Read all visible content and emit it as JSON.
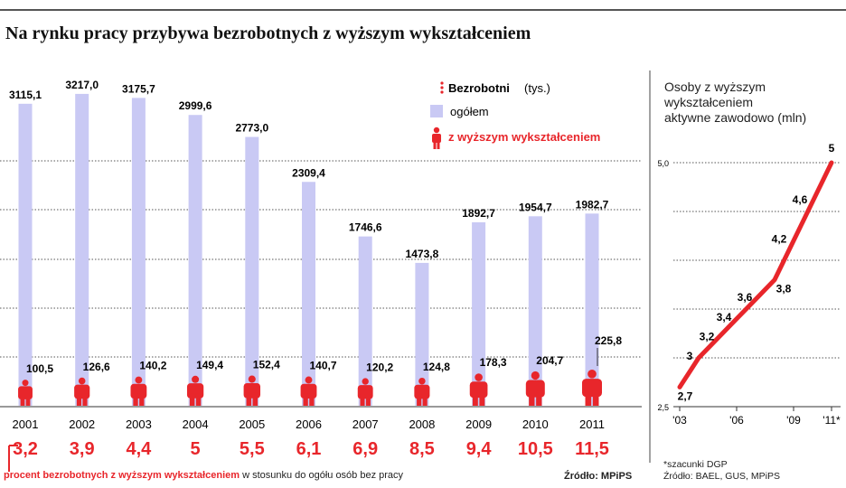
{
  "title": "Na rynku pracy przybywa bezrobotnych z wyższym wykształceniem",
  "legend": {
    "header_bold": "Bezrobotni",
    "header_unit": "(tys.)",
    "total_label": "ogółem",
    "higher_label": "z wyższym wykształceniem"
  },
  "colors": {
    "total_bar": "#c9c9f4",
    "red": "#e8262b",
    "grid": "#555555"
  },
  "footer": {
    "red_text": "procent bezrobotnych z wyższym wykształceniem",
    "black_text": "w stosunku do ogółu osób bez pracy",
    "source": "Źródło: MPiPS"
  },
  "right": {
    "title_lines": [
      "Osoby z wyższym",
      "wykształceniem",
      "aktywne zawodowo (mln)"
    ],
    "note": "*szacunki DGP",
    "source": "Źródło: BAEL, GUS, MPiPS"
  },
  "chart_data": [
    {
      "type": "bar",
      "categories": [
        "2001",
        "2002",
        "2003",
        "2004",
        "2005",
        "2006",
        "2007",
        "2008",
        "2009",
        "2010",
        "2011"
      ],
      "series": [
        {
          "name": "ogółem",
          "values": [
            3115.1,
            3217.0,
            3175.7,
            2999.6,
            2773.0,
            2309.4,
            1746.6,
            1473.8,
            1892.7,
            1954.7,
            1982.7
          ],
          "labels": [
            "3115,1",
            "3217,0",
            "3175,7",
            "2999,6",
            "2773,0",
            "2309,4",
            "1746,6",
            "1473,8",
            "1892,7",
            "1954,7",
            "1982,7"
          ]
        },
        {
          "name": "z wyższym wykształceniem",
          "values": [
            100.5,
            126.6,
            140.2,
            149.4,
            152.4,
            140.7,
            120.2,
            124.8,
            178.3,
            204.7,
            225.8
          ],
          "labels": [
            "100,5",
            "126,6",
            "140,2",
            "149,4",
            "152,4",
            "140,7",
            "120,2",
            "124,8",
            "178,3",
            "204,7",
            "225,8"
          ]
        }
      ],
      "percent": [
        3.2,
        3.9,
        4.4,
        5,
        5.5,
        6.1,
        6.9,
        8.5,
        9.4,
        10.5,
        11.5
      ],
      "percent_labels": [
        "3,2",
        "3,9",
        "4,4",
        "5",
        "5,5",
        "6,1",
        "6,9",
        "8,5",
        "9,4",
        "10,5",
        "11,5"
      ],
      "ylim": [
        0,
        3300
      ],
      "grid": true
    },
    {
      "type": "line",
      "x": [
        2003,
        2004,
        2005,
        2006,
        2007,
        2008,
        2009,
        2010,
        2011
      ],
      "values": [
        2.7,
        3.0,
        3.2,
        3.4,
        3.6,
        3.8,
        4.2,
        4.6,
        5.0
      ],
      "labels": [
        "2,7",
        "3",
        "3,2",
        "3,4",
        "3,6",
        "3,8",
        "4,2",
        "4,6",
        "5"
      ],
      "ylim": [
        2.5,
        5.0
      ],
      "yticks": [
        "2,5",
        "5,0"
      ],
      "xticks": [
        "'03",
        "'06",
        "'09",
        "'11*"
      ],
      "xtick_values": [
        2003,
        2006,
        2009,
        2011
      ]
    }
  ]
}
